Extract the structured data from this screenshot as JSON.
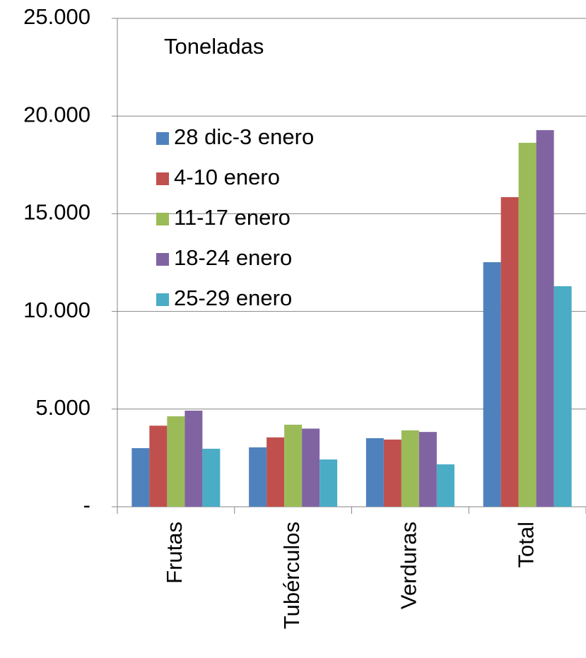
{
  "chart_data": {
    "type": "bar",
    "annotation": "Toneladas",
    "categories": [
      "Frutas",
      "Tubérculos",
      "Verduras",
      "Total"
    ],
    "series": [
      {
        "name": "28 dic-3 enero",
        "color": "#4f81bd",
        "values": [
          3000,
          3040,
          3510,
          12520
        ]
      },
      {
        "name": "4-10 enero",
        "color": "#c0504d",
        "values": [
          4150,
          3550,
          3440,
          15850
        ]
      },
      {
        "name": "11-17 enero",
        "color": "#9bbb59",
        "values": [
          4630,
          4200,
          3910,
          18630
        ]
      },
      {
        "name": "18-24 enero",
        "color": "#8064a2",
        "values": [
          4920,
          4000,
          3830,
          19280
        ]
      },
      {
        "name": "25-29 enero",
        "color": "#4bacc6",
        "values": [
          2970,
          2420,
          2170,
          11290
        ]
      }
    ],
    "ylim": [
      0,
      25000
    ],
    "yticks": [
      {
        "value": 0,
        "label": "-"
      },
      {
        "value": 5000,
        "label": "5.000"
      },
      {
        "value": 10000,
        "label": "10.000"
      },
      {
        "value": 15000,
        "label": "15.000"
      },
      {
        "value": 20000,
        "label": "20.000"
      },
      {
        "value": 25000,
        "label": "25.000"
      }
    ],
    "grid": true,
    "legend": "upper-left"
  }
}
